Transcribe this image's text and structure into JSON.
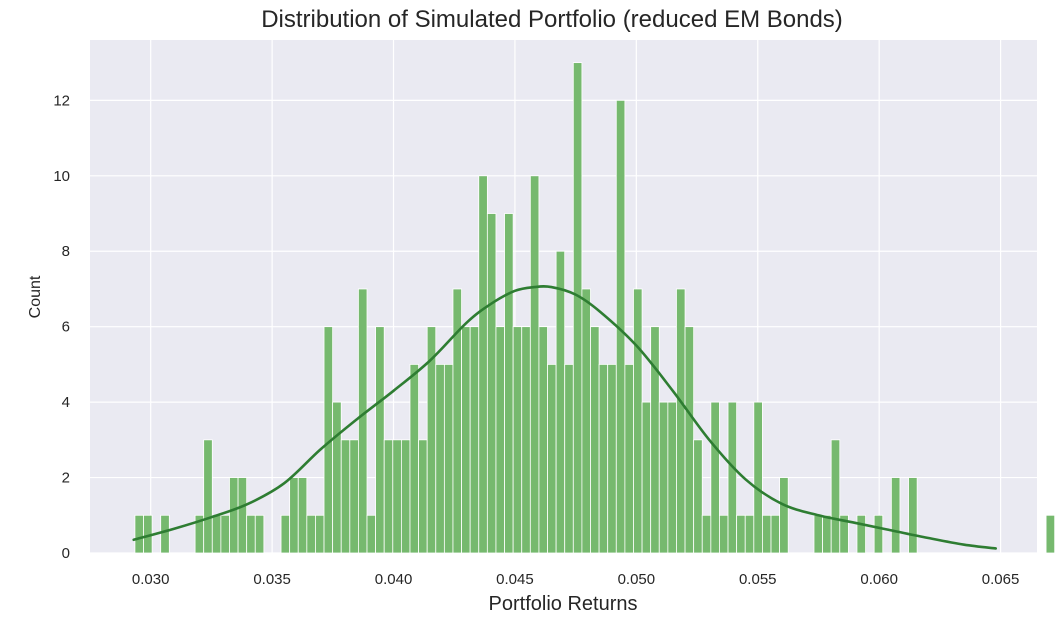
{
  "chart_data": {
    "type": "bar",
    "title": "Distribution of Simulated Portfolio (reduced EM Bonds)",
    "xlabel": "Portfolio Returns",
    "ylabel": "Count",
    "xlim": [
      0.0275,
      0.0665
    ],
    "ylim": [
      0,
      13.6
    ],
    "xticks": [
      0.03,
      0.035,
      0.04,
      0.045,
      0.05,
      0.055,
      0.06,
      0.065
    ],
    "xtick_labels": [
      "0.030",
      "0.035",
      "0.040",
      "0.045",
      "0.050",
      "0.055",
      "0.060",
      "0.065"
    ],
    "yticks": [
      0,
      2,
      4,
      6,
      8,
      10,
      12
    ],
    "ytick_labels": [
      "0",
      "2",
      "4",
      "6",
      "8",
      "10",
      "12"
    ],
    "grid": true,
    "legend": false,
    "colors": {
      "background": "#eaeaf2",
      "grid": "#ffffff",
      "bar_fill": "#76b96e",
      "bar_stroke": "#ffffff",
      "kde_line": "#2e7d32",
      "text": "#262626"
    },
    "histogram": {
      "bin_start": 0.02935,
      "bin_width": 0.000354,
      "counts": [
        1,
        1,
        0,
        1,
        0,
        0,
        0,
        1,
        3,
        1,
        1,
        2,
        2,
        1,
        1,
        0,
        0,
        1,
        2,
        2,
        1,
        1,
        6,
        4,
        3,
        3,
        7,
        1,
        6,
        3,
        3,
        3,
        5,
        3,
        6,
        5,
        5,
        7,
        6,
        6,
        10,
        9,
        6,
        9,
        6,
        6,
        10,
        6,
        5,
        8,
        5,
        13,
        7,
        6,
        5,
        5,
        12,
        5,
        7,
        4,
        6,
        4,
        4,
        7,
        6,
        3,
        1,
        4,
        1,
        4,
        1,
        1,
        4,
        1,
        1,
        2,
        0,
        0,
        0,
        1,
        1,
        3,
        1,
        0,
        1,
        0,
        1,
        0,
        2,
        0,
        2,
        0,
        0,
        0,
        0,
        0,
        0,
        0,
        0,
        0,
        0,
        0,
        0,
        0,
        0,
        0,
        1
      ]
    },
    "kde": {
      "x": [
        0.0293,
        0.031,
        0.0325,
        0.034,
        0.0355,
        0.037,
        0.0385,
        0.04,
        0.0415,
        0.043,
        0.044,
        0.045,
        0.0458,
        0.0465,
        0.0475,
        0.0485,
        0.05,
        0.0515,
        0.053,
        0.0545,
        0.056,
        0.0575,
        0.059,
        0.0605,
        0.062,
        0.0635,
        0.0648
      ],
      "y": [
        0.35,
        0.65,
        0.95,
        1.3,
        1.85,
        2.75,
        3.55,
        4.3,
        5.1,
        6.1,
        6.6,
        6.95,
        7.05,
        7.05,
        6.85,
        6.4,
        5.5,
        4.3,
        3.0,
        1.95,
        1.3,
        1.0,
        0.8,
        0.6,
        0.4,
        0.22,
        0.12
      ]
    }
  }
}
